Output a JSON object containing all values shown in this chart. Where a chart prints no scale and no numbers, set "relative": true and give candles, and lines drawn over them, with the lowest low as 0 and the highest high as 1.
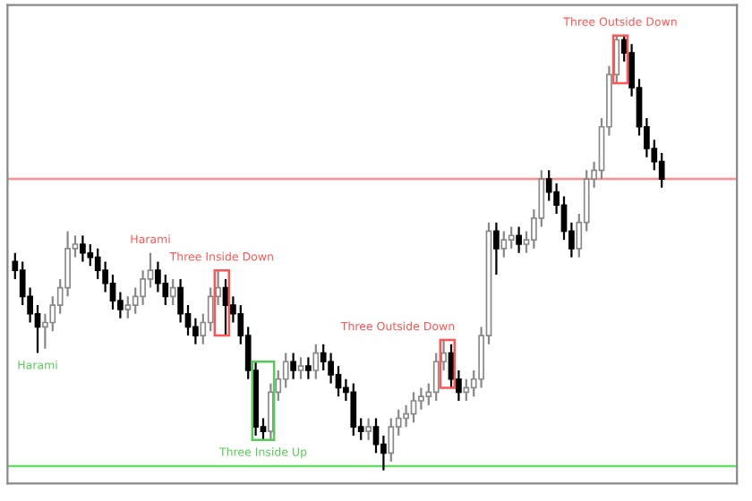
{
  "chart_data": {
    "type": "candlestick",
    "relative": true,
    "grid": false,
    "categories": [
      null,
      null,
      null,
      null,
      null,
      null,
      null,
      null,
      null,
      null,
      null,
      null,
      null,
      null,
      null,
      null,
      null,
      null,
      null,
      null,
      null,
      null,
      null,
      null,
      null,
      null,
      null,
      null,
      null,
      null,
      null,
      null,
      null,
      null,
      null,
      null,
      null,
      null,
      null,
      null,
      null,
      null,
      null,
      null,
      null,
      null,
      null,
      null,
      null,
      null,
      null,
      null,
      null,
      null,
      null,
      null,
      null,
      null,
      null,
      null,
      null,
      null,
      null,
      null,
      null,
      null,
      null,
      null,
      null,
      null,
      null,
      null,
      null,
      null,
      null,
      null,
      null,
      null,
      null,
      null,
      null,
      null,
      null,
      null,
      null,
      null,
      null
    ],
    "ohlc": [
      [
        0.48,
        0.5,
        0.44,
        0.46
      ],
      [
        0.46,
        0.48,
        0.38,
        0.4
      ],
      [
        0.4,
        0.42,
        0.34,
        0.36
      ],
      [
        0.36,
        0.38,
        0.27,
        0.33
      ],
      [
        0.33,
        0.36,
        0.28,
        0.34
      ],
      [
        0.34,
        0.4,
        0.32,
        0.38
      ],
      [
        0.38,
        0.44,
        0.36,
        0.42
      ],
      [
        0.42,
        0.55,
        0.4,
        0.51
      ],
      [
        0.51,
        0.54,
        0.49,
        0.52
      ],
      [
        0.52,
        0.54,
        0.48,
        0.5
      ],
      [
        0.5,
        0.52,
        0.47,
        0.49
      ],
      [
        0.49,
        0.51,
        0.44,
        0.46
      ],
      [
        0.46,
        0.48,
        0.41,
        0.43
      ],
      [
        0.43,
        0.45,
        0.37,
        0.39
      ],
      [
        0.39,
        0.41,
        0.35,
        0.37
      ],
      [
        0.37,
        0.4,
        0.35,
        0.38
      ],
      [
        0.38,
        0.42,
        0.36,
        0.4
      ],
      [
        0.4,
        0.46,
        0.38,
        0.44
      ],
      [
        0.44,
        0.5,
        0.42,
        0.46
      ],
      [
        0.46,
        0.48,
        0.41,
        0.43
      ],
      [
        0.43,
        0.45,
        0.38,
        0.4
      ],
      [
        0.4,
        0.44,
        0.38,
        0.42
      ],
      [
        0.42,
        0.44,
        0.34,
        0.36
      ],
      [
        0.36,
        0.38,
        0.31,
        0.33
      ],
      [
        0.33,
        0.35,
        0.29,
        0.31
      ],
      [
        0.31,
        0.36,
        0.29,
        0.34
      ],
      [
        0.34,
        0.42,
        0.32,
        0.4
      ],
      [
        0.4,
        0.46,
        0.38,
        0.42
      ],
      [
        0.42,
        0.44,
        0.31,
        0.38
      ],
      [
        0.38,
        0.4,
        0.34,
        0.36
      ],
      [
        0.36,
        0.38,
        0.29,
        0.31
      ],
      [
        0.31,
        0.33,
        0.21,
        0.23
      ],
      [
        0.23,
        0.25,
        0.08,
        0.1
      ],
      [
        0.1,
        0.12,
        0.07,
        0.09
      ],
      [
        0.09,
        0.2,
        0.07,
        0.18
      ],
      [
        0.18,
        0.23,
        0.16,
        0.21
      ],
      [
        0.21,
        0.27,
        0.19,
        0.25
      ],
      [
        0.25,
        0.27,
        0.21,
        0.23
      ],
      [
        0.23,
        0.26,
        0.21,
        0.24
      ],
      [
        0.24,
        0.26,
        0.21,
        0.23
      ],
      [
        0.23,
        0.29,
        0.21,
        0.27
      ],
      [
        0.27,
        0.29,
        0.23,
        0.25
      ],
      [
        0.25,
        0.27,
        0.2,
        0.22
      ],
      [
        0.22,
        0.24,
        0.17,
        0.19
      ],
      [
        0.19,
        0.21,
        0.16,
        0.18
      ],
      [
        0.18,
        0.2,
        0.08,
        0.1
      ],
      [
        0.1,
        0.12,
        0.07,
        0.09
      ],
      [
        0.09,
        0.12,
        0.07,
        0.1
      ],
      [
        0.1,
        0.12,
        0.04,
        0.06
      ],
      [
        0.06,
        0.08,
        0.0,
        0.04
      ],
      [
        0.04,
        0.12,
        0.02,
        0.1
      ],
      [
        0.1,
        0.14,
        0.08,
        0.12
      ],
      [
        0.12,
        0.15,
        0.1,
        0.13
      ],
      [
        0.13,
        0.18,
        0.11,
        0.16
      ],
      [
        0.16,
        0.19,
        0.14,
        0.17
      ],
      [
        0.17,
        0.2,
        0.15,
        0.18
      ],
      [
        0.18,
        0.27,
        0.16,
        0.25
      ],
      [
        0.25,
        0.3,
        0.23,
        0.27
      ],
      [
        0.27,
        0.29,
        0.19,
        0.21
      ],
      [
        0.21,
        0.23,
        0.16,
        0.18
      ],
      [
        0.18,
        0.21,
        0.16,
        0.19
      ],
      [
        0.19,
        0.23,
        0.17,
        0.21
      ],
      [
        0.21,
        0.33,
        0.19,
        0.31
      ],
      [
        0.31,
        0.57,
        0.29,
        0.55
      ],
      [
        0.55,
        0.57,
        0.45,
        0.51
      ],
      [
        0.51,
        0.55,
        0.49,
        0.53
      ],
      [
        0.53,
        0.56,
        0.51,
        0.54
      ],
      [
        0.54,
        0.56,
        0.5,
        0.52
      ],
      [
        0.52,
        0.55,
        0.5,
        0.53
      ],
      [
        0.53,
        0.6,
        0.51,
        0.58
      ],
      [
        0.58,
        0.69,
        0.56,
        0.67
      ],
      [
        0.67,
        0.69,
        0.62,
        0.64
      ],
      [
        0.64,
        0.66,
        0.59,
        0.61
      ],
      [
        0.61,
        0.63,
        0.53,
        0.55
      ],
      [
        0.55,
        0.57,
        0.49,
        0.51
      ],
      [
        0.51,
        0.59,
        0.49,
        0.57
      ],
      [
        0.57,
        0.69,
        0.55,
        0.67
      ],
      [
        0.67,
        0.71,
        0.65,
        0.69
      ],
      [
        0.69,
        0.81,
        0.67,
        0.79
      ],
      [
        0.79,
        0.93,
        0.77,
        0.91
      ],
      [
        0.91,
        1.0,
        0.89,
        0.99
      ],
      [
        0.99,
        1.0,
        0.94,
        0.96
      ],
      [
        0.96,
        0.98,
        0.86,
        0.88
      ],
      [
        0.88,
        0.9,
        0.77,
        0.79
      ],
      [
        0.79,
        0.81,
        0.72,
        0.74
      ],
      [
        0.74,
        0.76,
        0.69,
        0.71
      ],
      [
        0.71,
        0.73,
        0.65,
        0.67
      ]
    ],
    "ref_lines": [
      {
        "axis": "y",
        "value": 0.67,
        "color": "#ff9090"
      },
      {
        "axis": "y",
        "value": 0.01,
        "color": "#66dd66"
      }
    ],
    "annotations": [
      "Harami",
      "Harami",
      "Three Inside Down",
      "Three Inside Up",
      "Three Outside Down",
      "Three Outside Down"
    ]
  }
}
